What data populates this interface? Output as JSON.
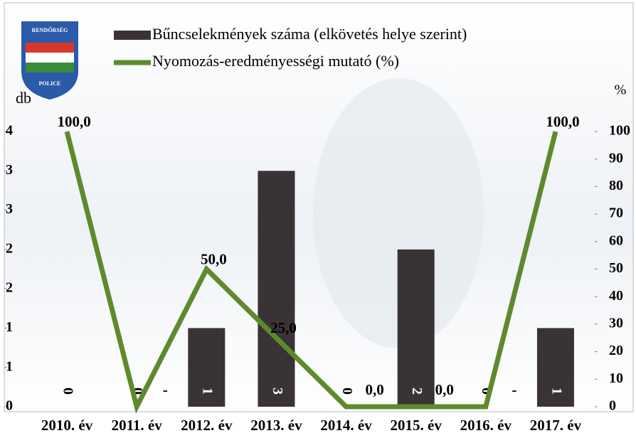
{
  "chart_data": {
    "type": "bar_line",
    "logo": {
      "top": "RENDŐRSÉG",
      "bottom": "POLICE"
    },
    "y_label": "db",
    "y2_label": "%",
    "categories": [
      "2010. év",
      "2011. év",
      "2012. év",
      "2013. év",
      "2014. év",
      "2015. év",
      "2016. év",
      "2017. év"
    ],
    "series": [
      {
        "name": "Bűncselekmények száma (elkövetés helye szerint)",
        "type": "bar",
        "color": "#3a3335",
        "values": [
          0,
          0,
          1,
          3,
          0,
          2,
          0,
          1
        ]
      },
      {
        "name": "Nyomozás-eredményességi mutató (%)",
        "type": "line",
        "axis": "y2",
        "color": "#5e8a2c",
        "values": [
          100,
          0,
          50,
          25,
          0,
          0,
          0,
          100
        ],
        "value_labels": [
          "100,0",
          "-",
          "50,0",
          "25,0",
          "0,0",
          "0,0",
          "-",
          "100,0"
        ]
      }
    ],
    "ylim": [
      0,
      3.5
    ],
    "yticks": [
      0,
      {
        "value": 0.5,
        "label": "1"
      },
      1,
      {
        "value": 1.5,
        "label": "2"
      },
      2,
      {
        "value": 2.5,
        "label": "3"
      },
      3,
      {
        "value": 3.5,
        "label": "4"
      }
    ],
    "y2lim": [
      0,
      100
    ],
    "y2ticks": [
      0,
      10,
      20,
      30,
      40,
      50,
      60,
      70,
      80,
      90,
      100
    ]
  }
}
